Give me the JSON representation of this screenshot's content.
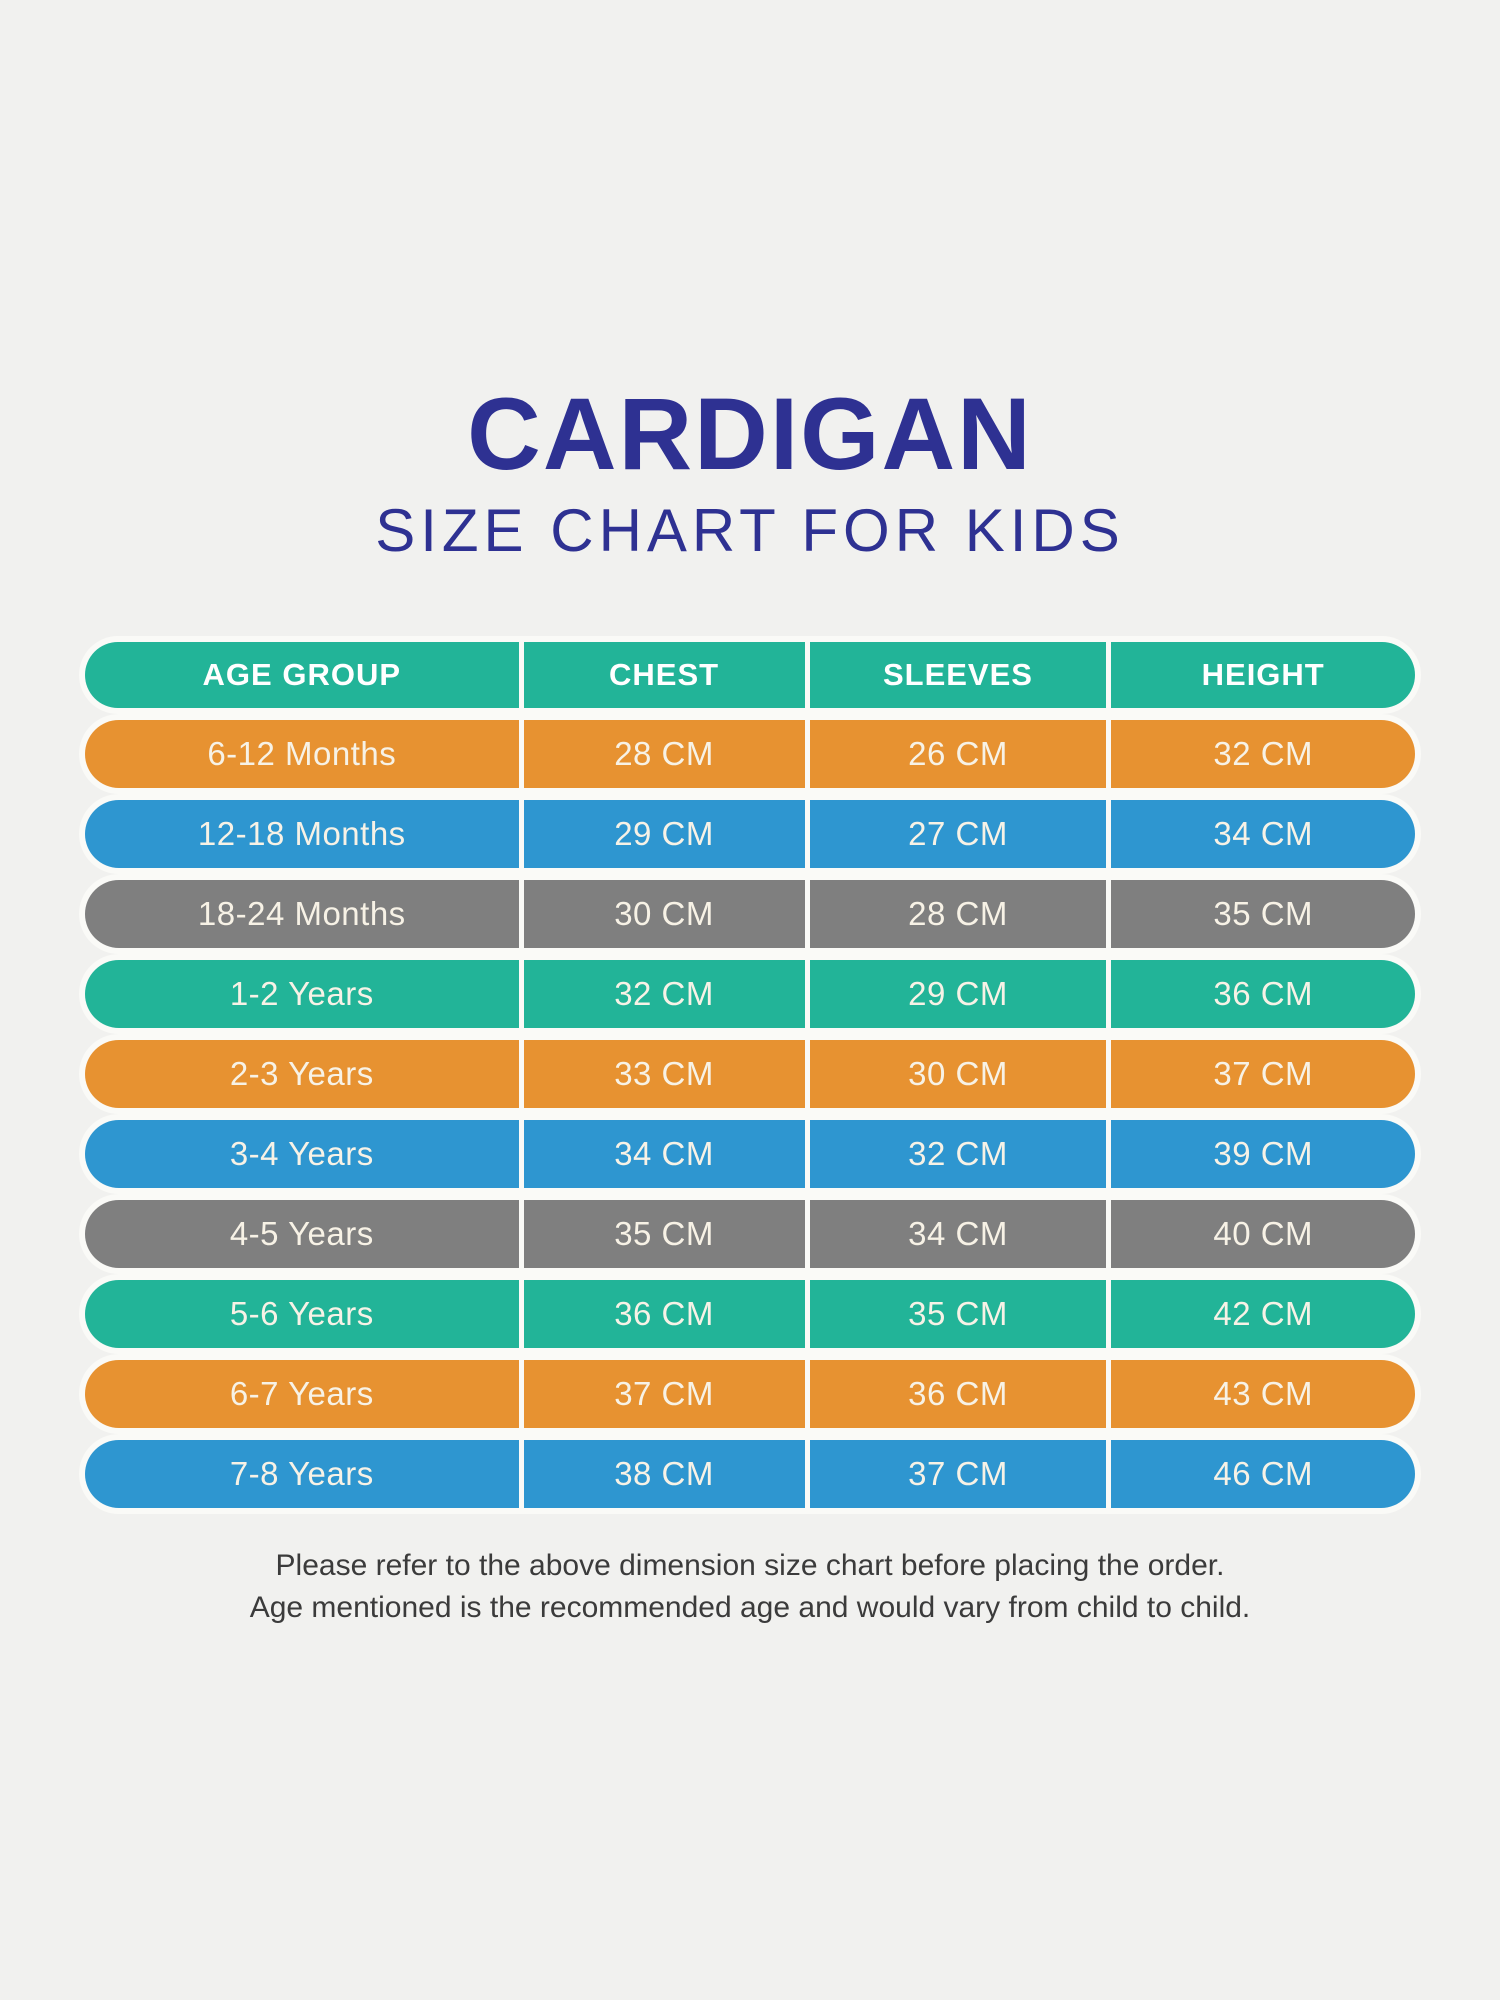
{
  "page": {
    "background": "#f1f1ef"
  },
  "title": {
    "main": "CARDIGAN",
    "subtitle": "SIZE CHART FOR KIDS",
    "color": "#2e3192"
  },
  "chart_data": {
    "type": "table",
    "title": "CARDIGAN",
    "subtitle": "SIZE CHART FOR KIDS",
    "columns": [
      "AGE GROUP",
      "CHEST",
      "SLEEVES",
      "HEIGHT"
    ],
    "rows": [
      [
        "6-12 Months",
        "28 CM",
        "26 CM",
        "32 CM"
      ],
      [
        "12-18 Months",
        "29 CM",
        "27 CM",
        "34 CM"
      ],
      [
        "18-24 Months",
        "30 CM",
        "28 CM",
        "35 CM"
      ],
      [
        "1-2 Years",
        "32 CM",
        "29 CM",
        "36 CM"
      ],
      [
        "2-3 Years",
        "33 CM",
        "30 CM",
        "37 CM"
      ],
      [
        "3-4 Years",
        "34 CM",
        "32 CM",
        "39 CM"
      ],
      [
        "4-5 Years",
        "35 CM",
        "34 CM",
        "40 CM"
      ],
      [
        "5-6 Years",
        "36 CM",
        "35 CM",
        "42 CM"
      ],
      [
        "6-7 Years",
        "37 CM",
        "36 CM",
        "43 CM"
      ],
      [
        "7-8 Years",
        "38 CM",
        "37 CM",
        "46 CM"
      ]
    ]
  },
  "table": {
    "header_bg": "#22b498",
    "header_text_color": "#ffffff",
    "row_text_color": "#f7f2e6",
    "divider_color": "#fafaf7",
    "row_colors": {
      "teal": "#22b498",
      "orange": "#e79231",
      "blue": "#2e96d0",
      "gray": "#7f7f7f"
    },
    "row_color_sequence": [
      "orange",
      "blue",
      "gray",
      "teal",
      "orange",
      "blue",
      "gray",
      "teal",
      "orange",
      "blue"
    ]
  },
  "footer": {
    "line1": "Please refer to the above dimension size chart before placing the order.",
    "line2": "Age mentioned is the recommended age and would vary from child to child.",
    "color": "#3b3b3b"
  }
}
